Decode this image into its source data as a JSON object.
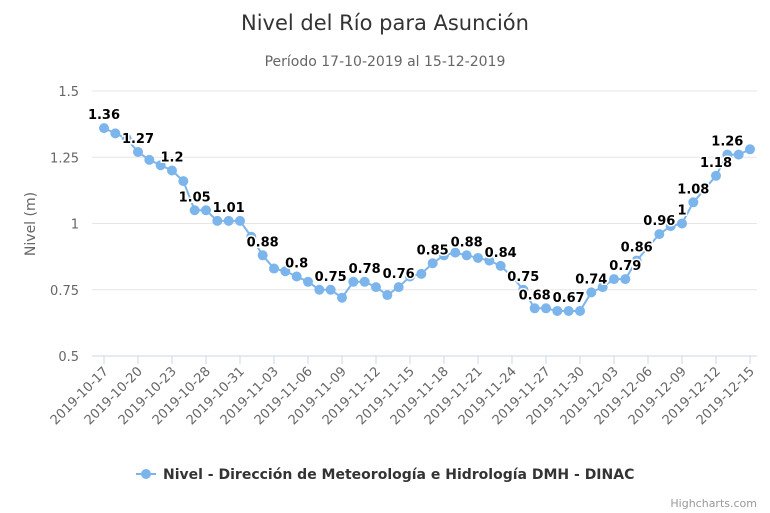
{
  "chart_data": {
    "type": "line",
    "title": "Nivel del Río para Asunción",
    "subtitle": "Período 17-10-2019 al 15-12-2019",
    "ylabel": "Nivel (m)",
    "xlabel": "",
    "ylim": [
      0.5,
      1.5
    ],
    "yticks": [
      0.5,
      0.75,
      1,
      1.25,
      1.5
    ],
    "ytick_labels": [
      "0.5",
      "0.75",
      "1",
      "1.25",
      "1.5"
    ],
    "grid": true,
    "legend_position": "bottom",
    "series_color": "#7cb5ec",
    "x_tick_labels": [
      "2019-10-17",
      "2019-10-20",
      "2019-10-23",
      "2019-10-28",
      "2019-10-31",
      "2019-11-03",
      "2019-11-06",
      "2019-11-09",
      "2019-11-12",
      "2019-11-15",
      "2019-11-18",
      "2019-11-21",
      "2019-11-24",
      "2019-11-27",
      "2019-11-30",
      "2019-12-03",
      "2019-12-06",
      "2019-12-09",
      "2019-12-12",
      "2019-12-15"
    ],
    "series": [
      {
        "name": "Nivel - Dirección de Meteorología e Hidrología DMH - DINAC",
        "values": [
          1.36,
          1.34,
          1.32,
          1.27,
          1.24,
          1.22,
          1.2,
          1.16,
          1.05,
          1.05,
          1.01,
          1.01,
          1.01,
          0.95,
          0.88,
          0.83,
          0.82,
          0.8,
          0.78,
          0.75,
          0.75,
          0.72,
          0.78,
          0.78,
          0.76,
          0.73,
          0.76,
          0.8,
          0.81,
          0.85,
          0.88,
          0.89,
          0.88,
          0.87,
          0.86,
          0.84,
          0.8,
          0.75,
          0.68,
          0.68,
          0.67,
          0.67,
          0.67,
          0.74,
          0.76,
          0.79,
          0.79,
          0.86,
          0.91,
          0.96,
          0.99,
          1,
          1.08,
          1.13,
          1.18,
          1.26,
          1.26,
          1.28
        ],
        "labeled_points": [
          0,
          3,
          6,
          8,
          11,
          14,
          17,
          20,
          23,
          26,
          29,
          32,
          35,
          37,
          38,
          41,
          43,
          46,
          47,
          49,
          51,
          52,
          54,
          55
        ]
      }
    ],
    "credits": "Highcharts.com"
  }
}
